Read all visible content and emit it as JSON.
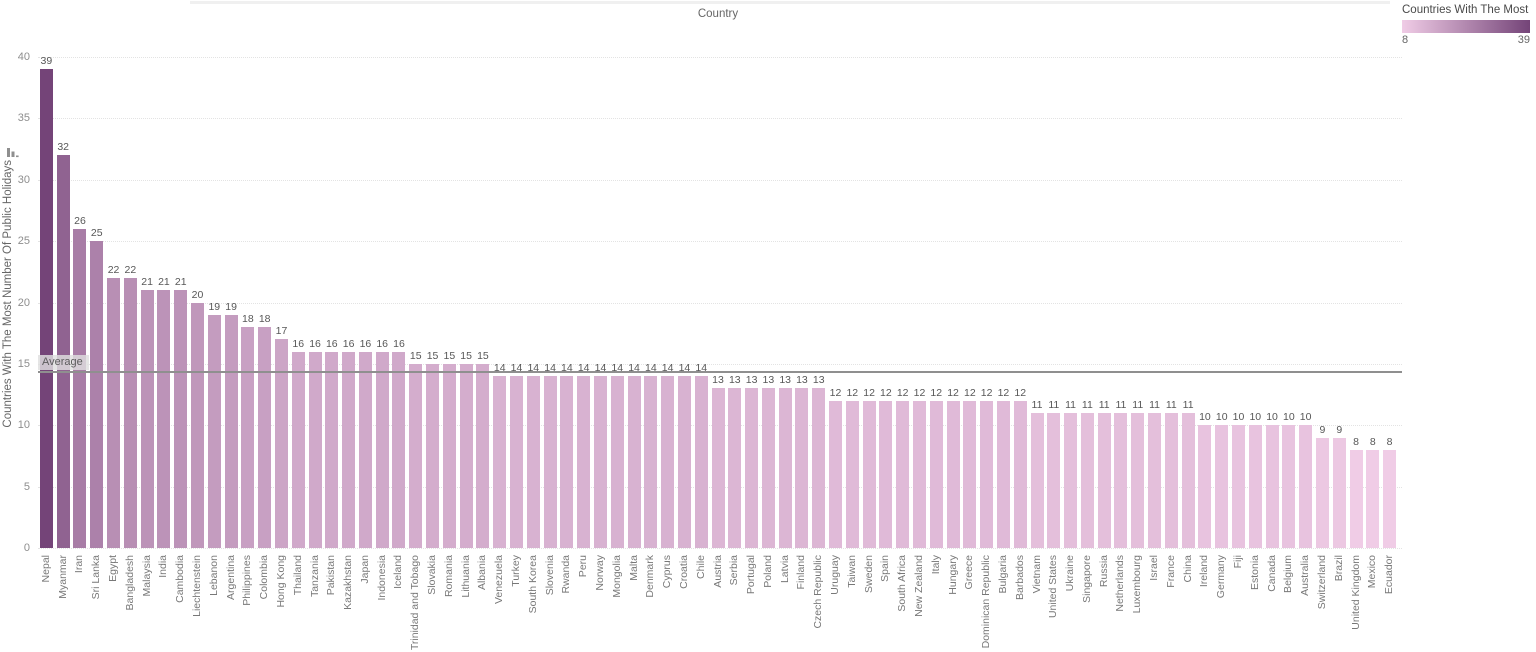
{
  "header": {
    "column_axis_title": "Country"
  },
  "legend": {
    "title": "Countries With The Most ...",
    "min_label": "8",
    "max_label": "39",
    "min_color": "#f0cce6",
    "max_color": "#744478"
  },
  "y_axis": {
    "title": "Countries With The Most Number Of Public Holidays",
    "ticks": [
      0,
      5,
      10,
      15,
      20,
      25,
      30,
      35,
      40
    ]
  },
  "reference_line": {
    "label": "Average",
    "value": 14.4
  },
  "chart_data": {
    "type": "bar",
    "title": "Countries With The Most Number Of Public Holidays",
    "xlabel": "Country",
    "ylabel": "Countries With The Most Number Of Public Holidays",
    "ylim": [
      0,
      40
    ],
    "grid": true,
    "legend_position": "top-right",
    "color_scale": {
      "min_value": 8,
      "max_value": 39,
      "min_color": "#f0cce6",
      "max_color": "#744478"
    },
    "reference_line": {
      "label": "Average",
      "value": 14.4
    },
    "categories": [
      "Nepal",
      "Myanmar",
      "Iran",
      "Sri Lanka",
      "Egypt",
      "Bangladesh",
      "Malaysia",
      "India",
      "Cambodia",
      "Liechtenstein",
      "Lebanon",
      "Argentina",
      "Philippines",
      "Colombia",
      "Hong Kong",
      "Thailand",
      "Tanzania",
      "Pakistan",
      "Kazakhstan",
      "Japan",
      "Indonesia",
      "Iceland",
      "Trinidad and Tobago",
      "Slovakia",
      "Romania",
      "Lithuania",
      "Albania",
      "Venezuela",
      "Turkey",
      "South Korea",
      "Slovenia",
      "Rwanda",
      "Peru",
      "Norway",
      "Mongolia",
      "Malta",
      "Denmark",
      "Cyprus",
      "Croatia",
      "Chile",
      "Austria",
      "Serbia",
      "Portugal",
      "Poland",
      "Latvia",
      "Finland",
      "Czech Republic",
      "Uruguay",
      "Taiwan",
      "Sweden",
      "Spain",
      "South Africa",
      "New Zealand",
      "Italy",
      "Hungary",
      "Greece",
      "Dominican Republic",
      "Bulgaria",
      "Barbados",
      "Vietnam",
      "United States",
      "Ukraine",
      "Singapore",
      "Russia",
      "Netherlands",
      "Luxembourg",
      "Israel",
      "France",
      "China",
      "Ireland",
      "Germany",
      "Fiji",
      "Estonia",
      "Canada",
      "Belgium",
      "Australia",
      "Switzerland",
      "Brazil",
      "United Kingdom",
      "Mexico",
      "Ecuador"
    ],
    "values": [
      39,
      32,
      26,
      25,
      22,
      22,
      21,
      21,
      21,
      20,
      19,
      19,
      18,
      18,
      17,
      16,
      16,
      16,
      16,
      16,
      16,
      16,
      15,
      15,
      15,
      15,
      15,
      14,
      14,
      14,
      14,
      14,
      14,
      14,
      14,
      14,
      14,
      14,
      14,
      14,
      13,
      13,
      13,
      13,
      13,
      13,
      13,
      12,
      12,
      12,
      12,
      12,
      12,
      12,
      12,
      12,
      12,
      12,
      12,
      11,
      11,
      11,
      11,
      11,
      11,
      11,
      11,
      11,
      11,
      10,
      10,
      10,
      10,
      10,
      10,
      10,
      9,
      9,
      8,
      8,
      8
    ]
  }
}
